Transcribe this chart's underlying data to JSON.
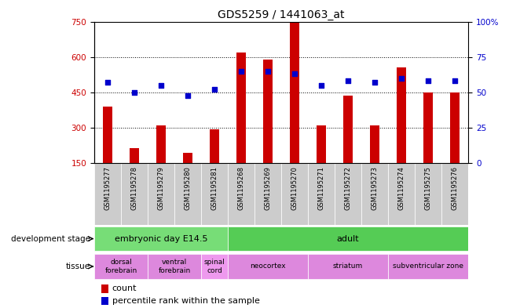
{
  "title": "GDS5259 / 1441063_at",
  "samples": [
    "GSM1195277",
    "GSM1195278",
    "GSM1195279",
    "GSM1195280",
    "GSM1195281",
    "GSM1195268",
    "GSM1195269",
    "GSM1195270",
    "GSM1195271",
    "GSM1195272",
    "GSM1195273",
    "GSM1195274",
    "GSM1195275",
    "GSM1195276"
  ],
  "counts": [
    390,
    215,
    310,
    195,
    295,
    620,
    590,
    745,
    310,
    435,
    310,
    555,
    450,
    450
  ],
  "percentiles": [
    57,
    50,
    55,
    48,
    52,
    65,
    65,
    63,
    55,
    58,
    57,
    60,
    58,
    58
  ],
  "bar_color": "#cc0000",
  "dot_color": "#0000cc",
  "ylim_left": [
    150,
    750
  ],
  "ylim_right": [
    0,
    100
  ],
  "yticks_left": [
    150,
    300,
    450,
    600,
    750
  ],
  "yticks_right": [
    0,
    25,
    50,
    75,
    100
  ],
  "grid_values": [
    300,
    450,
    600
  ],
  "development_stage_groups": [
    {
      "label": "embryonic day E14.5",
      "start": 0,
      "end": 5,
      "color": "#77dd77"
    },
    {
      "label": "adult",
      "start": 5,
      "end": 14,
      "color": "#55cc55"
    }
  ],
  "tissue_groups": [
    {
      "label": "dorsal\nforebrain",
      "start": 0,
      "end": 2,
      "color": "#dd88dd"
    },
    {
      "label": "ventral\nforebrain",
      "start": 2,
      "end": 4,
      "color": "#dd88dd"
    },
    {
      "label": "spinal\ncord",
      "start": 4,
      "end": 5,
      "color": "#ee99ee"
    },
    {
      "label": "neocortex",
      "start": 5,
      "end": 8,
      "color": "#dd88dd"
    },
    {
      "label": "striatum",
      "start": 8,
      "end": 11,
      "color": "#dd88dd"
    },
    {
      "label": "subventricular zone",
      "start": 11,
      "end": 14,
      "color": "#dd88dd"
    }
  ],
  "left_label_color": "#cc0000",
  "right_label_color": "#0000cc",
  "background_color": "#ffffff",
  "plot_bg_color": "#ffffff",
  "xtick_bg_color": "#cccccc",
  "bar_width": 0.35
}
